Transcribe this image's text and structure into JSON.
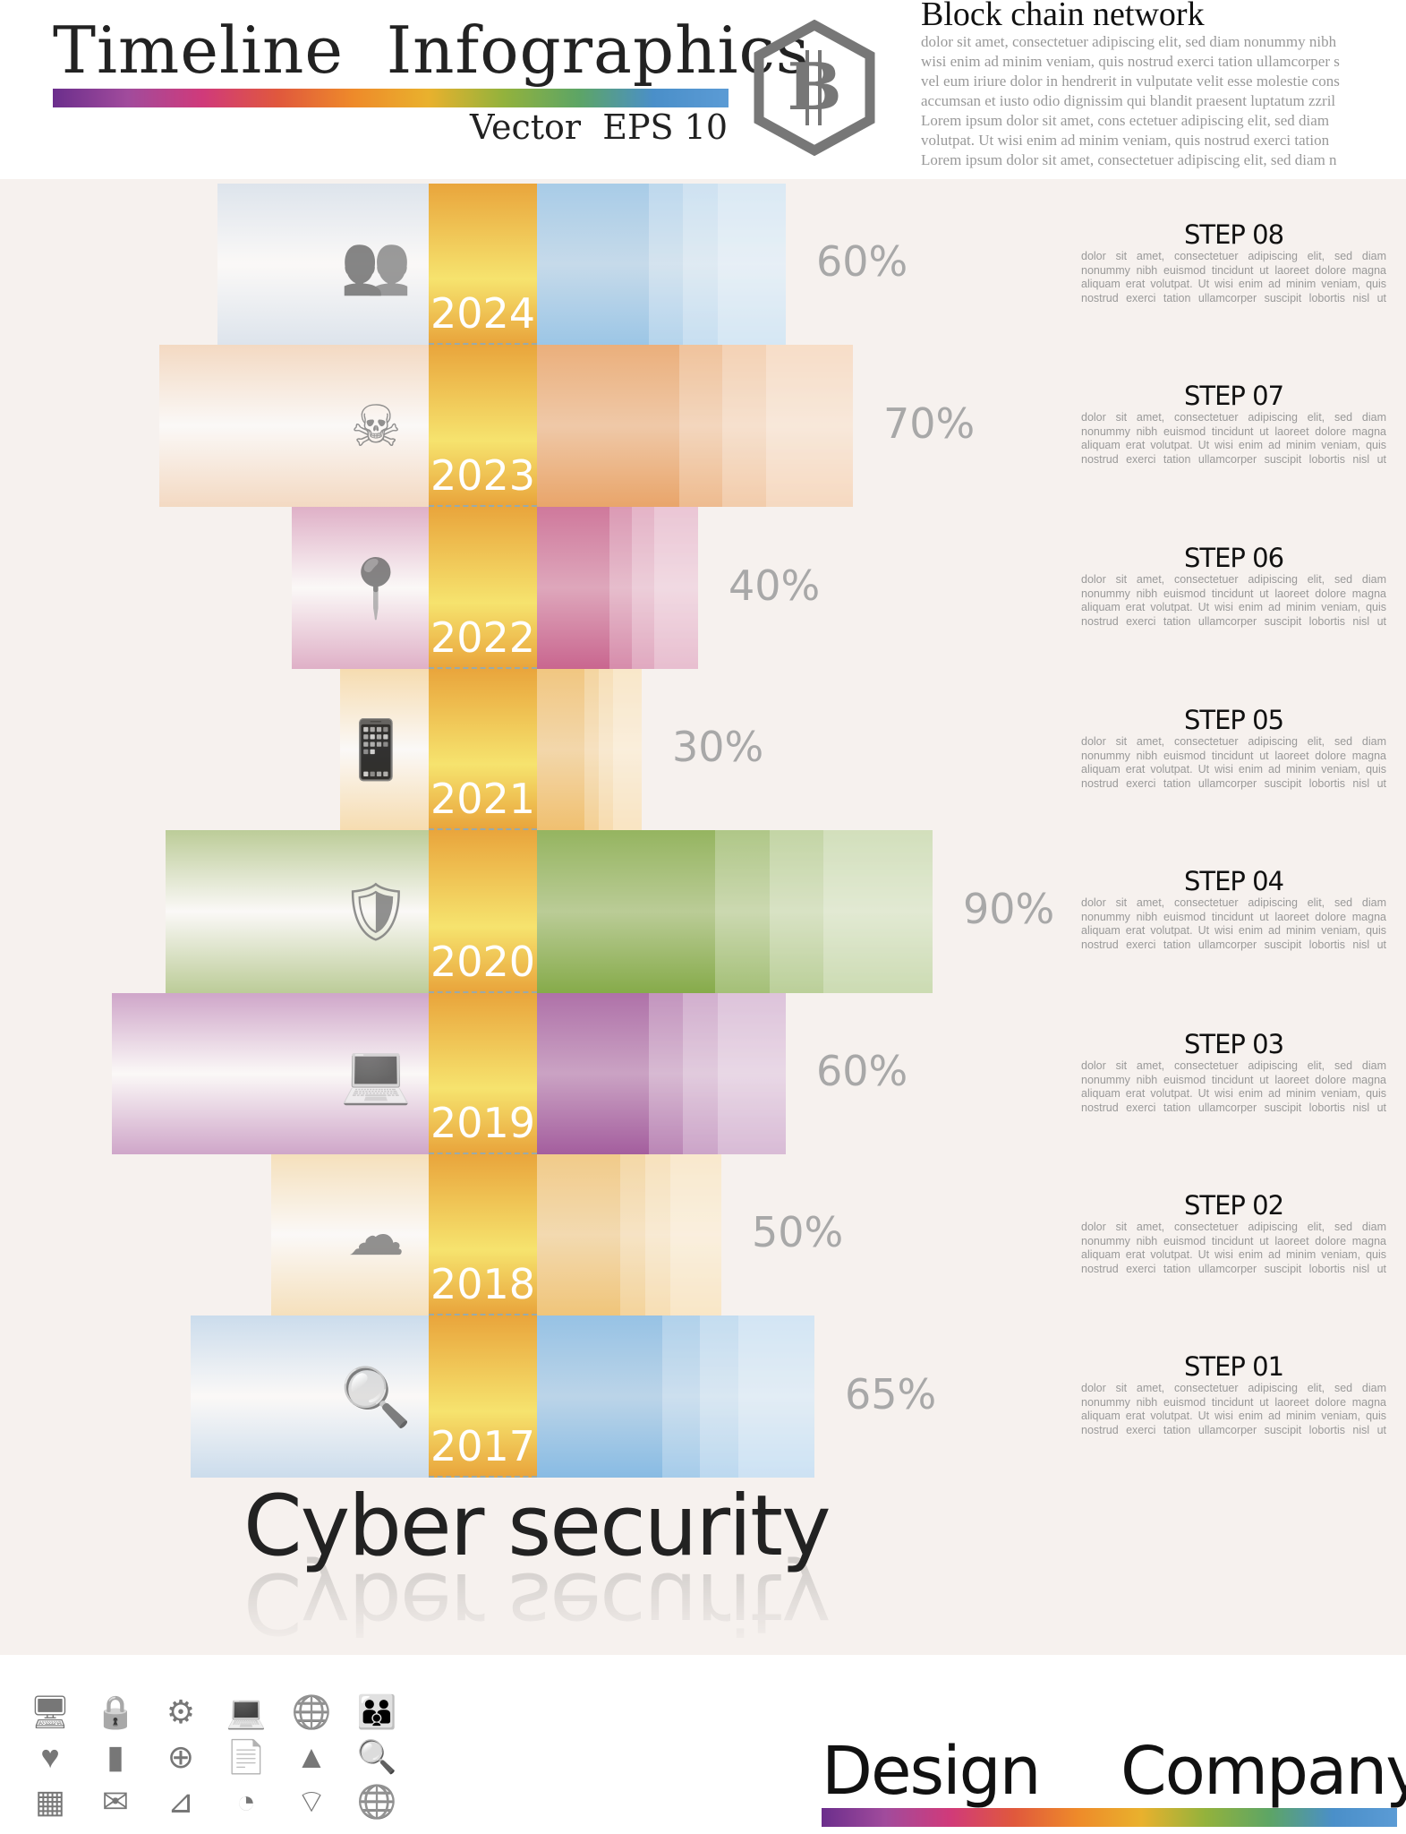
{
  "header": {
    "title": "Timeline  Infographics",
    "subtitle": "Vector  EPS 10",
    "logo_letter": "B",
    "blockchain_title": "Block chain network",
    "blockchain_lines": [
      "dolor sit amet, consectetuer adipiscing elit, sed diam nonummy nibh",
      "wisi enim ad minim veniam, quis nostrud exerci tation ullamcorper s",
      "vel eum iriure dolor in hendrerit in vulputate velit esse molestie cons",
      "accumsan et iusto odio dignissim qui blandit praesent luptatum zzril",
      "Lorem ipsum dolor sit amet, cons ectetuer adipiscing elit, sed diam",
      "volutpat. Ut wisi enim ad minim veniam, quis nostrud exerci tation",
      "Lorem ipsum dolor sit amet, consectetuer adipiscing elit, sed diam n"
    ]
  },
  "step_body": "dolor sit amet, consectetuer adipiscing elit, sed diam nonummy nibh euismod tincidunt ut laoreet dolore magna aliquam erat volutpat. Ut wisi enim ad minim veniam, quis nostrud exerci tation ullamcorper suscipit lobortis nisl ut",
  "rows": [
    {
      "year": "2024",
      "percent": "60%",
      "step": "STEP 08",
      "icon": "people-icon",
      "color": "#9cc6e6",
      "left": "#dde4ec"
    },
    {
      "year": "2023",
      "percent": "70%",
      "step": "STEP 07",
      "icon": "wifi-skull-icon",
      "color": "#e9a56a",
      "left": "#f3d9c2"
    },
    {
      "year": "2022",
      "percent": "40%",
      "step": "STEP 06",
      "icon": "location-lock-icon",
      "color": "#c9668f",
      "left": "#dfb0c7"
    },
    {
      "year": "2021",
      "percent": "30%",
      "step": "STEP 05",
      "icon": "phone-lock-icon",
      "color": "#f0c070",
      "left": "#f6dcb0"
    },
    {
      "year": "2020",
      "percent": "90%",
      "step": "STEP 04",
      "icon": "shield-wifi-icon",
      "color": "#86ab4a",
      "left": "#bccc98"
    },
    {
      "year": "2019",
      "percent": "60%",
      "step": "STEP 03",
      "icon": "laptop-people-icon",
      "color": "#a45e9e",
      "left": "#cfa6c9"
    },
    {
      "year": "2018",
      "percent": "50%",
      "step": "STEP 02",
      "icon": "cloud-upload-lock-icon",
      "color": "#f0c57a",
      "left": "#f5e0bc"
    },
    {
      "year": "2017",
      "percent": "65%",
      "step": "STEP 01",
      "icon": "search-lock-icon",
      "color": "#88bbe3",
      "left": "#cbdcec"
    }
  ],
  "percent_values": [
    60,
    70,
    40,
    30,
    90,
    60,
    50,
    65
  ],
  "main_title": "Cyber security",
  "footer": {
    "design": "Design",
    "company": "Company",
    "icons": [
      "monitor-lock-icon",
      "lock-at-icon",
      "gear-lock-icon",
      "computer-lock-icon",
      "globe-lock-icon",
      "people-lock-icon",
      "heart-icon",
      "bar-chart-icon",
      "head-plus-icon",
      "document-icon",
      "area-chart-icon",
      "search-lock-icon",
      "hand-grid-icon",
      "envelope-icon",
      "chart-lines-icon",
      "pie-chart-icon",
      "wifi-lock-icon",
      "globe-search-icon"
    ]
  }
}
